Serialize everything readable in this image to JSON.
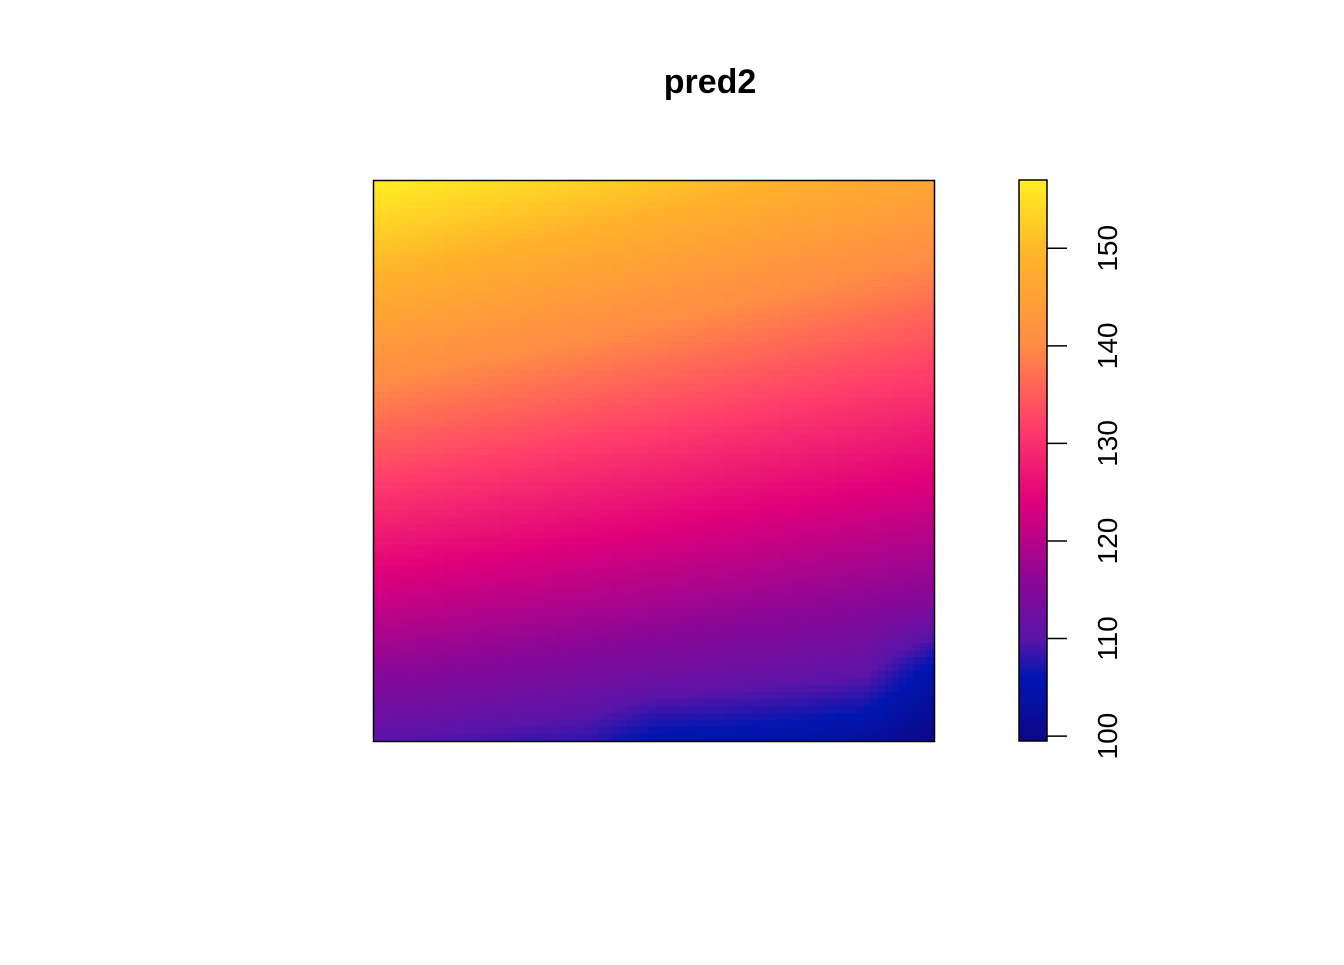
{
  "chart_data": {
    "type": "heatmap",
    "title": "pred2",
    "xlabel": "",
    "ylabel": "",
    "axes_shown": false,
    "legend_placement": "right",
    "colorbar": {
      "range": [
        99.5,
        157
      ],
      "ticks": [
        100,
        110,
        120,
        130,
        140,
        150
      ],
      "tick_labels": [
        "100",
        "110",
        "120",
        "130",
        "140",
        "150"
      ]
    },
    "palette": {
      "stops": [
        {
          "value": 99.5,
          "color": "#0d0887"
        },
        {
          "value": 106,
          "color": "#0016b0"
        },
        {
          "value": 110,
          "color": "#5a14a8"
        },
        {
          "value": 116,
          "color": "#8c0796"
        },
        {
          "value": 124,
          "color": "#e0007a"
        },
        {
          "value": 132,
          "color": "#ff3f6a"
        },
        {
          "value": 140,
          "color": "#ff8c45"
        },
        {
          "value": 149,
          "color": "#ffb22a"
        },
        {
          "value": 157,
          "color": "#ffef23"
        }
      ]
    },
    "field": {
      "description_axes": "rows from top to bottom, columns from left to right",
      "corners": {
        "top_left": 157,
        "top_right": 146,
        "bottom_left": 110,
        "bottom_right": 99.5
      },
      "values": [
        [
          157.0,
          155.6,
          154.3,
          152.9,
          151.5,
          150.1,
          148.7,
          147.4,
          146.0
        ],
        [
          151.1,
          149.8,
          148.5,
          147.2,
          145.9,
          144.6,
          143.3,
          142.0,
          140.7
        ],
        [
          145.3,
          144.1,
          142.8,
          141.6,
          140.4,
          139.2,
          137.9,
          136.7,
          135.5
        ],
        [
          139.4,
          138.3,
          137.2,
          136.0,
          134.9,
          133.8,
          132.6,
          131.5,
          130.4
        ],
        [
          133.5,
          132.5,
          131.5,
          130.4,
          129.4,
          128.3,
          127.3,
          126.3,
          125.2
        ],
        [
          127.6,
          126.7,
          125.8,
          124.8,
          123.9,
          122.9,
          122.0,
          121.1,
          120.1
        ],
        [
          121.8,
          120.9,
          120.1,
          119.3,
          118.4,
          117.6,
          116.7,
          115.9,
          115.1
        ],
        [
          115.9,
          115.2,
          114.4,
          113.7,
          112.9,
          112.2,
          111.5,
          110.7,
          104.8
        ],
        [
          110.0,
          109.4,
          108.7,
          108.1,
          105.2,
          104.8,
          104.2,
          103.0,
          99.5
        ]
      ]
    }
  }
}
